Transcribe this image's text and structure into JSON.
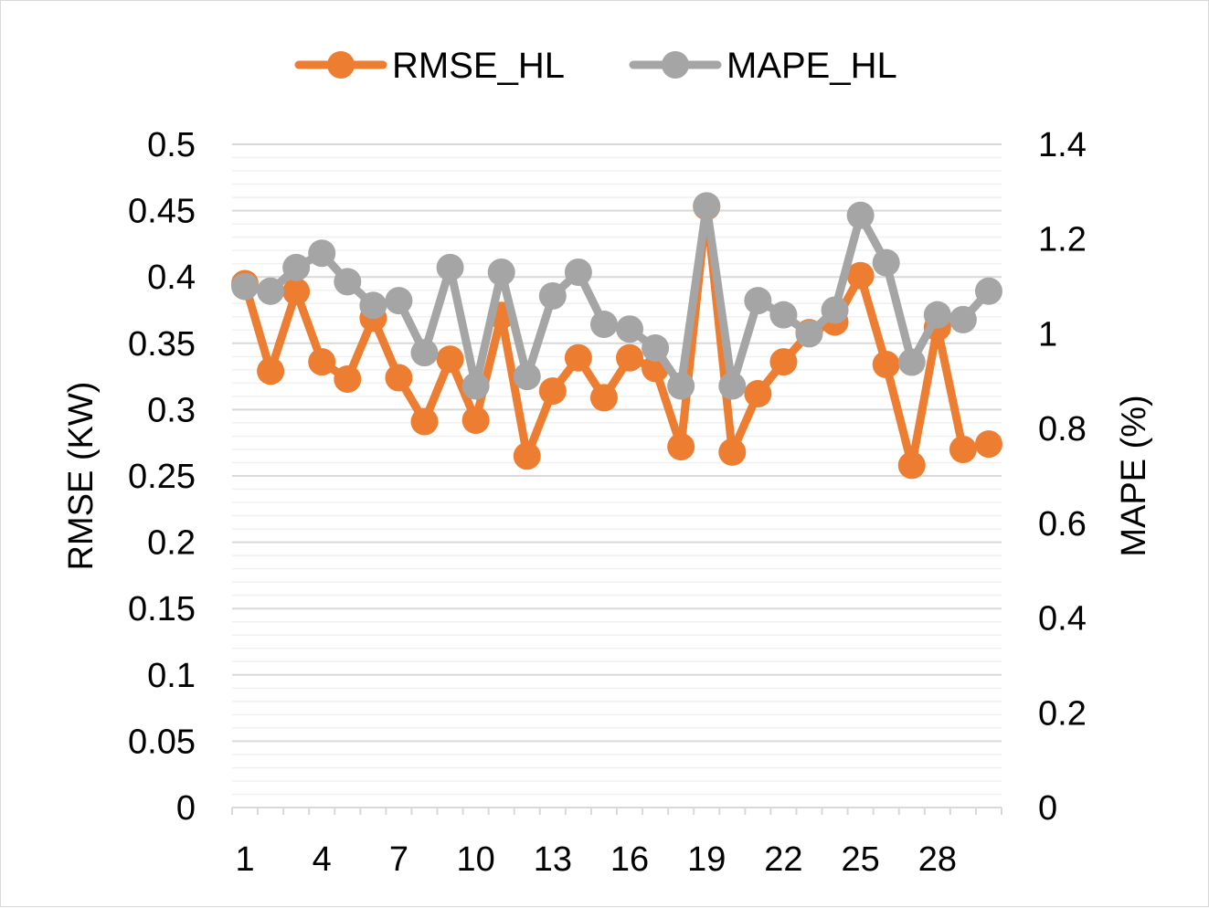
{
  "chart_data": {
    "type": "line",
    "x": [
      1,
      2,
      3,
      4,
      5,
      6,
      7,
      8,
      9,
      10,
      11,
      12,
      13,
      14,
      15,
      16,
      17,
      18,
      19,
      20,
      21,
      22,
      23,
      24,
      25,
      26,
      27,
      28,
      29,
      30
    ],
    "x_tick_labels": [
      "1",
      "4",
      "7",
      "10",
      "13",
      "16",
      "19",
      "22",
      "25",
      "28"
    ],
    "y_left": {
      "label": "RMSE (KW)",
      "ylim": [
        0,
        0.5
      ],
      "ticks": [
        "0",
        "0.05",
        "0.1",
        "0.15",
        "0.2",
        "0.25",
        "0.3",
        "0.35",
        "0.4",
        "0.45",
        "0.5"
      ]
    },
    "y_right": {
      "label": "MAPE (%)",
      "ylim": [
        0,
        1.4
      ],
      "ticks": [
        "0",
        "0.2",
        "0.4",
        "0.6",
        "0.8",
        "1",
        "1.2",
        "1.4"
      ]
    },
    "series": [
      {
        "name": "RMSE_HL",
        "axis": "left",
        "color": "#ED7D31",
        "values": [
          0.395,
          0.329,
          0.389,
          0.336,
          0.323,
          0.369,
          0.324,
          0.291,
          0.338,
          0.292,
          0.371,
          0.265,
          0.314,
          0.339,
          0.309,
          0.339,
          0.331,
          0.272,
          0.453,
          0.268,
          0.312,
          0.336,
          0.358,
          0.366,
          0.401,
          0.334,
          0.258,
          0.362,
          0.27,
          0.274
        ]
      },
      {
        "name": "MAPE_HL",
        "axis": "right",
        "color": "#A5A5A5",
        "values": [
          1.1,
          1.09,
          1.14,
          1.17,
          1.11,
          1.06,
          1.07,
          0.96,
          1.14,
          0.89,
          1.13,
          0.91,
          1.08,
          1.13,
          1.02,
          1.01,
          0.97,
          0.89,
          1.27,
          0.89,
          1.07,
          1.04,
          1.0,
          1.05,
          1.25,
          1.15,
          0.94,
          1.04,
          1.03,
          1.09
        ]
      }
    ],
    "grid": true,
    "legend_position": "top"
  }
}
